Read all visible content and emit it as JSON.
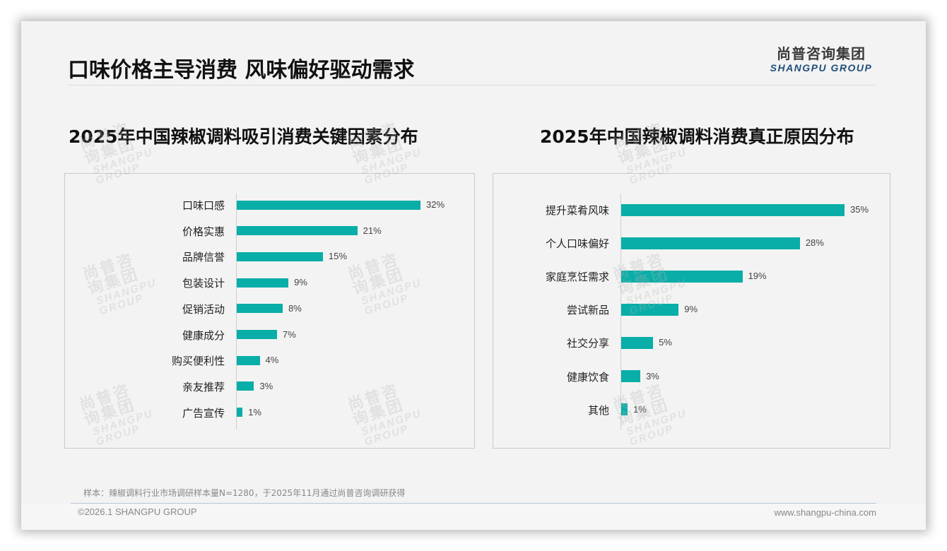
{
  "header": {
    "title": "口味价格主导消费 风味偏好驱动需求",
    "logo_cn": "尚普咨询集团",
    "logo_en": "SHANGPU GROUP"
  },
  "watermark": {
    "cn": "尚普咨询集团",
    "en": "SHANGPU GROUP"
  },
  "colors": {
    "bar": "#0aaea8",
    "logo_en": "#1f4e79",
    "panel_border": "#c3cad3",
    "background": "#f3f3f3"
  },
  "left_chart": {
    "title": "2025年中国辣椒调料吸引消费关键因素分布",
    "rows": [
      {
        "label": "口味口感",
        "value": 32,
        "text": "32%"
      },
      {
        "label": "价格实惠",
        "value": 21,
        "text": "21%"
      },
      {
        "label": "品牌信誉",
        "value": 15,
        "text": "15%"
      },
      {
        "label": "包装设计",
        "value": 9,
        "text": "9%"
      },
      {
        "label": "促销活动",
        "value": 8,
        "text": "8%"
      },
      {
        "label": "健康成分",
        "value": 7,
        "text": "7%"
      },
      {
        "label": "购买便利性",
        "value": 4,
        "text": "4%"
      },
      {
        "label": "亲友推荐",
        "value": 3,
        "text": "3%"
      },
      {
        "label": "广告宣传",
        "value": 1,
        "text": "1%"
      }
    ]
  },
  "right_chart": {
    "title": "2025年中国辣椒调料消费真正原因分布",
    "rows": [
      {
        "label": "提升菜肴风味",
        "value": 35,
        "text": "35%"
      },
      {
        "label": "个人口味偏好",
        "value": 28,
        "text": "28%"
      },
      {
        "label": "家庭烹饪需求",
        "value": 19,
        "text": "19%"
      },
      {
        "label": "尝试新品",
        "value": 9,
        "text": "9%"
      },
      {
        "label": "社交分享",
        "value": 5,
        "text": "5%"
      },
      {
        "label": "健康饮食",
        "value": 3,
        "text": "3%"
      },
      {
        "label": "其他",
        "value": 1,
        "text": "1%"
      }
    ]
  },
  "footer": {
    "note": "样本：辣椒调料行业市场调研样本量N=1280，于2025年11月通过尚普咨询调研获得",
    "copyright": "©2026.1 SHANGPU GROUP",
    "website": "www.shangpu-china.com"
  },
  "chart_data": [
    {
      "type": "bar",
      "orientation": "horizontal",
      "title": "2025年中国辣椒调料吸引消费关键因素分布",
      "categories": [
        "口味口感",
        "价格实惠",
        "品牌信誉",
        "包装设计",
        "促销活动",
        "健康成分",
        "购买便利性",
        "亲友推荐",
        "广告宣传"
      ],
      "values": [
        32,
        21,
        15,
        9,
        8,
        7,
        4,
        3,
        1
      ],
      "unit": "%",
      "xlabel": "",
      "ylabel": "",
      "xlim": [
        0,
        35
      ],
      "grid": false,
      "legend": "none",
      "data_labels": true
    },
    {
      "type": "bar",
      "orientation": "horizontal",
      "title": "2025年中国辣椒调料消费真正原因分布",
      "categories": [
        "提升菜肴风味",
        "个人口味偏好",
        "家庭烹饪需求",
        "尝试新品",
        "社交分享",
        "健康饮食",
        "其他"
      ],
      "values": [
        35,
        28,
        19,
        9,
        5,
        3,
        1
      ],
      "unit": "%",
      "xlabel": "",
      "ylabel": "",
      "xlim": [
        0,
        38
      ],
      "grid": false,
      "legend": "none",
      "data_labels": true
    }
  ]
}
